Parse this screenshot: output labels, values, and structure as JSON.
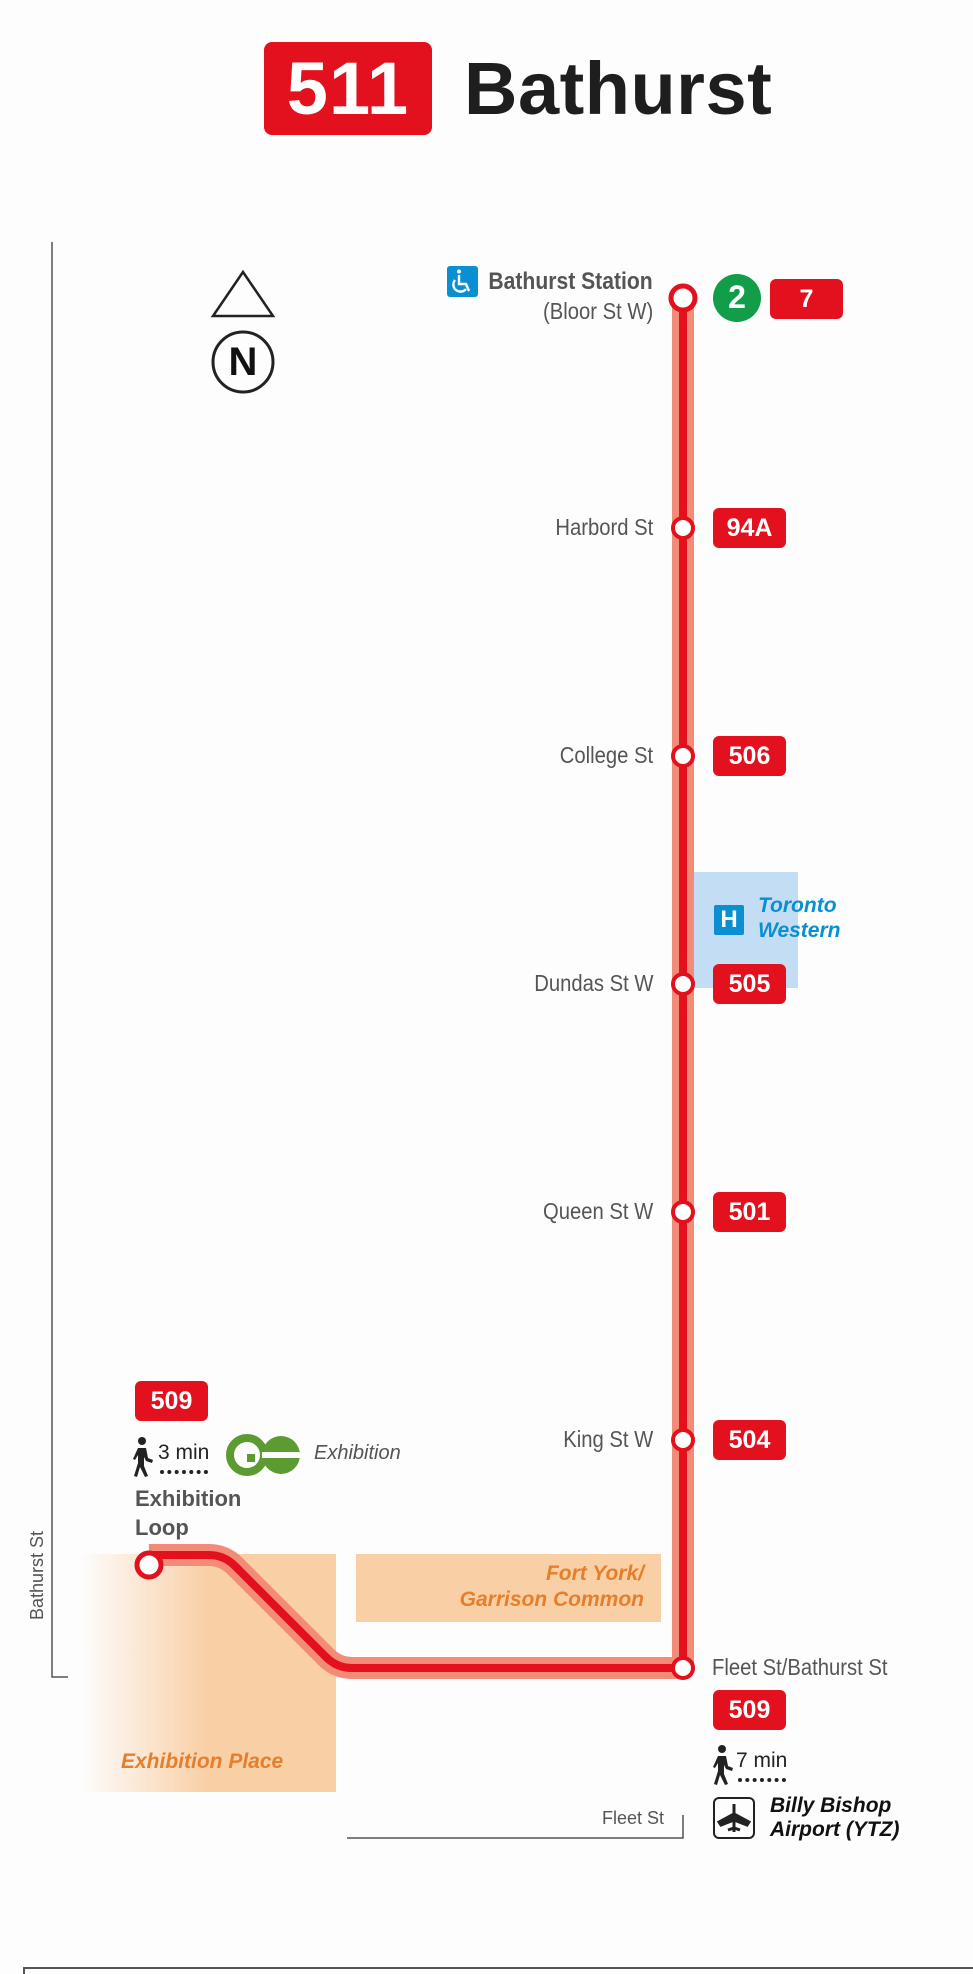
{
  "header": {
    "route_number": "511",
    "route_name": "Bathurst"
  },
  "compass": {
    "label": "N"
  },
  "stations": [
    {
      "name": "Bathurst Station",
      "sub": "(Bloor St W)",
      "connections": [
        "2",
        "7"
      ]
    },
    {
      "name": "Harbord St",
      "connections": [
        "94A"
      ]
    },
    {
      "name": "College St",
      "connections": [
        "506"
      ]
    },
    {
      "name": "Dundas St W",
      "connections": [
        "505"
      ]
    },
    {
      "name": "Queen St W",
      "connections": [
        "501"
      ]
    },
    {
      "name": "King St W",
      "connections": [
        "504"
      ]
    },
    {
      "name": "Fleet St/Bathurst St",
      "connections": [
        "509"
      ]
    }
  ],
  "hospital": {
    "label": "H",
    "name_line1": "Toronto",
    "name_line2": "Western"
  },
  "exhibition_loop": {
    "connection": "509",
    "walk_time": "3 min",
    "go_station": "Exhibition",
    "name_line1": "Exhibition",
    "name_line2": "Loop"
  },
  "airport": {
    "walk_time": "7 min",
    "name_line1": "Billy Bishop",
    "name_line2": "Airport (YTZ)"
  },
  "areas": {
    "fort_york_line1": "Fort York/",
    "fort_york_line2": "Garrison Common",
    "exhibition_place": "Exhibition Place"
  },
  "streets": {
    "bathurst": "Bathurst St",
    "fleet": "Fleet St"
  },
  "colors": {
    "route_red": "#e3101d",
    "line_light": "#f28b78",
    "line2_green": "#129e48",
    "go_green": "#5c9a32",
    "hospital_blue": "#0a8fd3",
    "park_orange": "#f9cfa6"
  }
}
